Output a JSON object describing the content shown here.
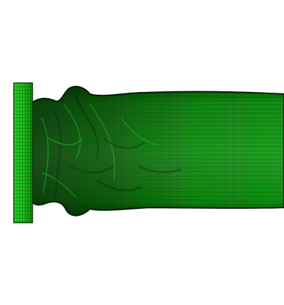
{
  "scene": {
    "subject": "deformed-tube-mesh",
    "background_color": "#ffffff",
    "colors": {
      "flange_fill": "#1fc31f",
      "flange_edge": "#0a3f0a",
      "flange_grid": "#064406",
      "tube_dark": "#0c4a0c",
      "tube_mid": "#129112",
      "tube_light": "#18b418",
      "mesh_line": "#052f05",
      "mesh_line_light": "#0b5e0b"
    }
  }
}
